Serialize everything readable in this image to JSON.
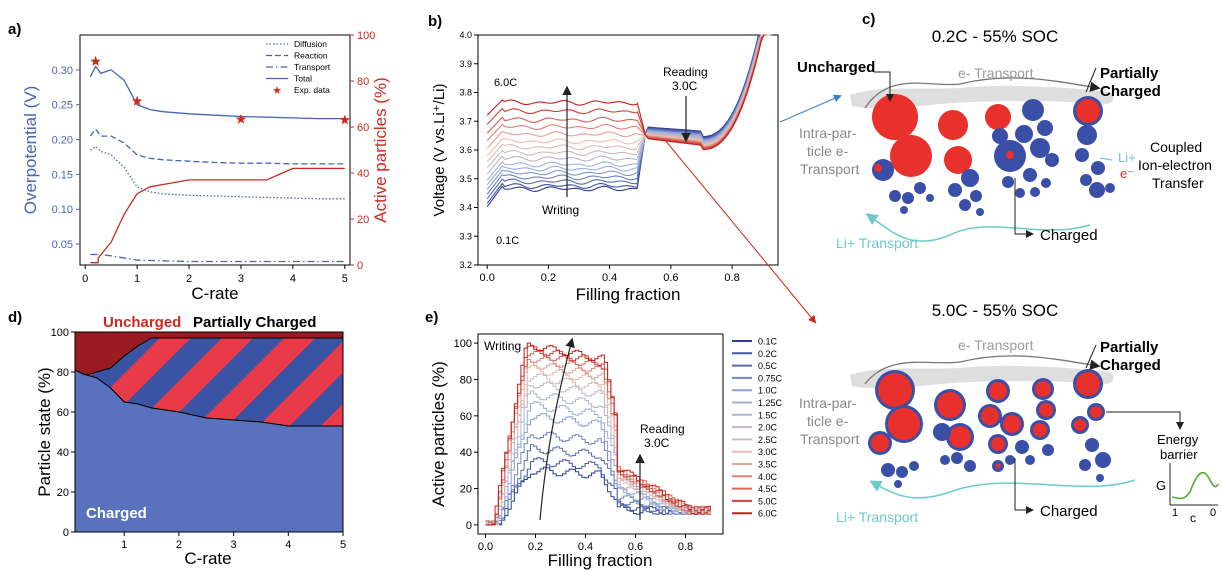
{
  "panels": {
    "a": "a)",
    "b": "b)",
    "c": "c)",
    "d": "d)",
    "e": "e)"
  },
  "colors": {
    "blue": "#4a63b5",
    "red": "#cc2a20",
    "particle_red": "#e8302c",
    "particle_blue": "#3a4fa8",
    "teal": "#6ec9c9",
    "green": "#4caf2b",
    "gray": "#9a9a9a"
  },
  "chart_data": [
    {
      "type": "line",
      "panel": "a",
      "xlabel": "C-rate",
      "ylabel": "Overpotential (V)",
      "y2label": "Active particles (%)",
      "xlim": [
        -0.1,
        5.1
      ],
      "ylim": [
        0.02,
        0.35
      ],
      "y2lim": [
        0,
        100
      ],
      "xticks": [
        0,
        1,
        2,
        3,
        4,
        5
      ],
      "yticks": [
        0.05,
        0.1,
        0.15,
        0.2,
        0.25,
        0.3
      ],
      "y2ticks": [
        0,
        20,
        40,
        60,
        80,
        100
      ],
      "legend": [
        "Diffusion",
        "Reaction",
        "Transport",
        "Total",
        "Exp. data"
      ],
      "legend_position": "top-right",
      "series": [
        {
          "name": "Diffusion",
          "style": "dotted",
          "x": [
            0.1,
            0.2,
            0.3,
            0.5,
            0.75,
            1.0,
            1.25,
            1.5,
            2.0,
            2.5,
            3.0,
            3.5,
            4.0,
            4.5,
            5.0
          ],
          "y": [
            0.185,
            0.19,
            0.183,
            0.178,
            0.16,
            0.132,
            0.125,
            0.122,
            0.12,
            0.119,
            0.118,
            0.117,
            0.116,
            0.115,
            0.115
          ]
        },
        {
          "name": "Reaction",
          "style": "dashed",
          "x": [
            0.1,
            0.2,
            0.3,
            0.5,
            0.75,
            1.0,
            1.25,
            1.5,
            2.0,
            2.5,
            3.0,
            3.5,
            4.0,
            4.5,
            5.0
          ],
          "y": [
            0.205,
            0.215,
            0.205,
            0.205,
            0.195,
            0.178,
            0.173,
            0.171,
            0.169,
            0.167,
            0.166,
            0.166,
            0.165,
            0.165,
            0.165
          ]
        },
        {
          "name": "Transport",
          "style": "dashdot",
          "x": [
            0.1,
            0.3,
            0.5,
            1.0,
            1.5,
            2.0,
            3.0,
            4.0,
            5.0
          ],
          "y": [
            0.035,
            0.035,
            0.033,
            0.027,
            0.026,
            0.025,
            0.025,
            0.025,
            0.025
          ]
        },
        {
          "name": "Total",
          "style": "solid",
          "x": [
            0.1,
            0.2,
            0.3,
            0.5,
            0.75,
            1.0,
            1.25,
            1.5,
            2.0,
            2.5,
            3.0,
            3.5,
            4.0,
            4.5,
            5.0
          ],
          "y": [
            0.29,
            0.305,
            0.295,
            0.3,
            0.285,
            0.25,
            0.243,
            0.24,
            0.237,
            0.235,
            0.233,
            0.232,
            0.231,
            0.23,
            0.23
          ]
        },
        {
          "name": "Exp. data",
          "style": "marker",
          "x": [
            0.2,
            1.0,
            3.0,
            5.0
          ],
          "y": [
            0.312,
            0.255,
            0.229,
            0.228
          ]
        }
      ],
      "active_particles": {
        "x": [
          0.1,
          0.25,
          0.25,
          0.5,
          0.75,
          1.0,
          1.25,
          1.5,
          2.0,
          2.5,
          3.0,
          3.5,
          4.0,
          4.5,
          5.0
        ],
        "y": [
          1,
          1,
          3,
          10,
          22,
          31,
          34,
          35,
          37,
          37,
          37,
          37,
          42,
          42,
          42
        ]
      }
    },
    {
      "type": "line",
      "panel": "b",
      "xlabel": "Filling fraction",
      "ylabel": "Voltage (V vs.Li⁺/Li)",
      "xlim": [
        -0.03,
        0.95
      ],
      "ylim": [
        3.2,
        4.0
      ],
      "xticks": [
        0.0,
        0.2,
        0.4,
        0.6,
        0.8
      ],
      "yticks": [
        3.2,
        3.3,
        3.4,
        3.5,
        3.6,
        3.7,
        3.8,
        3.9,
        4.0
      ],
      "series_labels": [
        "6.0C",
        "0.1C"
      ],
      "annotations": [
        "Writing",
        "Reading",
        "3.0C"
      ],
      "writing_plateaus": [
        3.465,
        3.475,
        3.49,
        3.505,
        3.52,
        3.535,
        3.55,
        3.57,
        3.59,
        3.61,
        3.63,
        3.655,
        3.68,
        3.705,
        3.735,
        3.765
      ]
    },
    {
      "type": "area",
      "panel": "d",
      "xlabel": "C-rate",
      "ylabel": "Particle state (%)",
      "xlim": [
        0.1,
        5.0
      ],
      "ylim": [
        0,
        100
      ],
      "xticks": [
        1,
        2,
        3,
        4,
        5
      ],
      "yticks": [
        0,
        20,
        40,
        60,
        80,
        100
      ],
      "categories": [
        "Charged",
        "Partially Charged",
        "Uncharged"
      ],
      "x": [
        0.1,
        0.25,
        0.5,
        0.75,
        1.0,
        1.25,
        1.5,
        2.0,
        2.5,
        3.0,
        3.5,
        4.0,
        4.5,
        5.0
      ],
      "charged": [
        81,
        79,
        77,
        72,
        65,
        64,
        62,
        60,
        57,
        56,
        55,
        53,
        53,
        53
      ],
      "charged_plus_partial": [
        80,
        78,
        80,
        82,
        88,
        93,
        97,
        97,
        97,
        97,
        97,
        97,
        97,
        97
      ]
    },
    {
      "type": "line",
      "panel": "e",
      "xlabel": "Filling fraction",
      "ylabel": "Active particles (%)",
      "xlim": [
        -0.03,
        0.95
      ],
      "ylim": [
        -5,
        105
      ],
      "xticks": [
        0.0,
        0.2,
        0.4,
        0.6,
        0.8
      ],
      "yticks": [
        0,
        20,
        40,
        60,
        80,
        100
      ],
      "legend": [
        "0.1C",
        "0.2C",
        "0.5C",
        "0.75C",
        "1.0C",
        "1.25C",
        "1.5C",
        "2.0C",
        "2.5C",
        "3.0C",
        "3.5C",
        "4.0C",
        "4.5C",
        "5.0C",
        "6.0C"
      ],
      "legend_position": "right",
      "peak_values": [
        30,
        35,
        42,
        50,
        60,
        66,
        72,
        78,
        82,
        86,
        89,
        92,
        95,
        97,
        99
      ],
      "annotations": [
        "Writing",
        "Reading",
        "3.0C"
      ]
    }
  ],
  "schematic": {
    "top_title": "0.2C - 55% SOC",
    "bottom_title": "5.0C - 55% SOC",
    "labels": {
      "uncharged": "Uncharged",
      "e_transport": "e- Transport",
      "partially_charged_top": "Partially",
      "partially_charged_bot": "Charged",
      "intra_1": "Intra-par-",
      "intra_2": "ticle e-",
      "intra_3": "Transport",
      "coupled_1": "Coupled",
      "coupled_2": "Ion-electron",
      "coupled_3": "Transfer",
      "li_plus": "Li+",
      "e_minus": "e⁻",
      "charged": "Charged",
      "li_transport": "Li+ Transport",
      "energy_1": "Energy",
      "energy_2": "barrier",
      "g_axis": "G",
      "c_axis": "c",
      "tick_1": "1",
      "tick_0": "0"
    }
  }
}
